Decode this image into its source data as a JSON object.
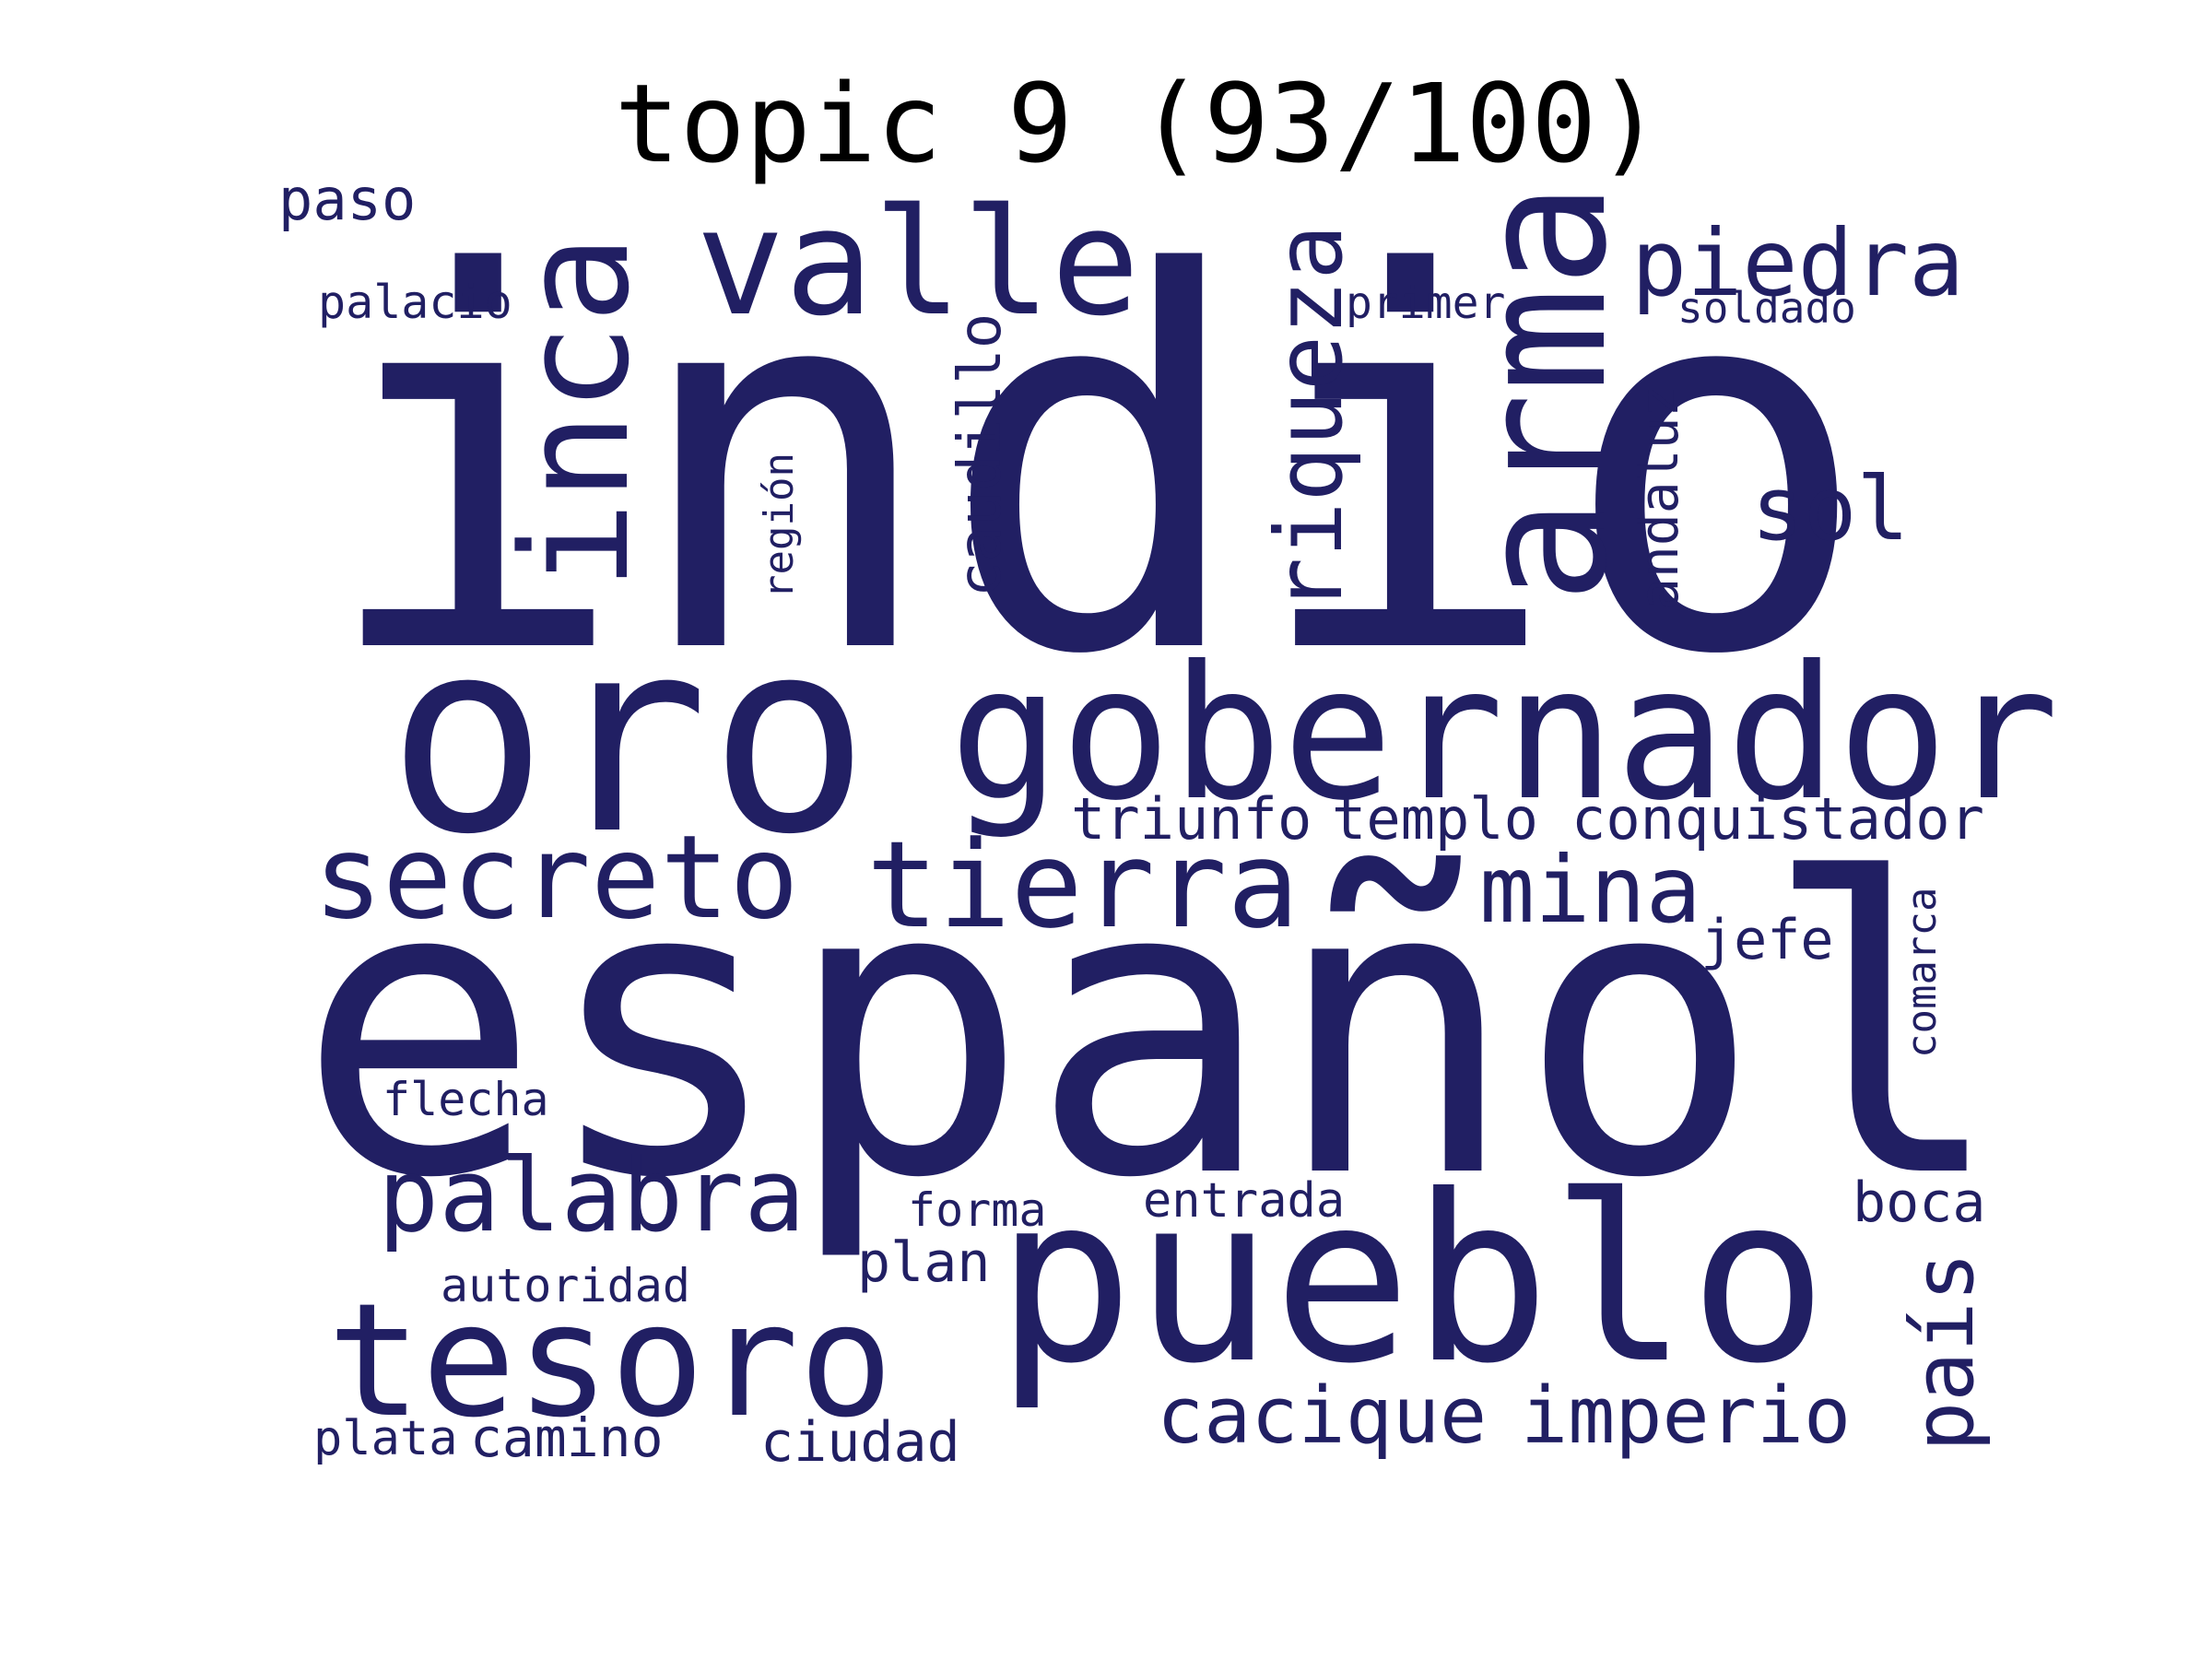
{
  "title": "topic 9 (93/100)",
  "word_color": "#211f63",
  "background_color": "#ffffff",
  "words": [
    "indio",
    "español",
    "oro",
    "gobernador",
    "pueblo",
    "arma",
    "inca",
    "valle",
    "tesoro",
    "secreto",
    "tierra",
    "palabra",
    "riqueza",
    "piedra",
    "mina",
    "cacique",
    "imperio",
    "sol",
    "país",
    "caudillo",
    "conquistador",
    "templo",
    "triunfo",
    "andaluz",
    "paso",
    "jefe",
    "comarca",
    "boca",
    "ciudad",
    "plan",
    "camino",
    "flecha",
    "forma",
    "entrada",
    "primer",
    "palacio",
    "soldado",
    "región",
    "autoridad",
    "plata"
  ]
}
